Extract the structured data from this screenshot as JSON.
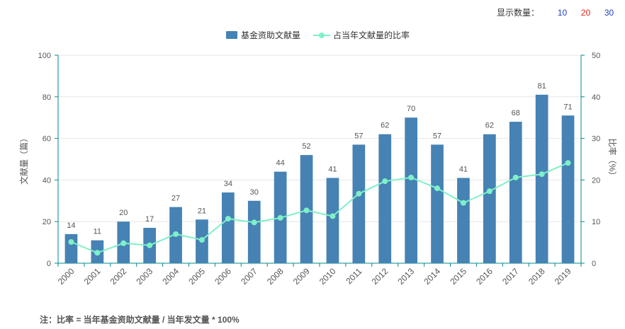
{
  "display_count": {
    "label": "显示数量：",
    "options": [
      {
        "value": "10",
        "color": "#1f3fbf"
      },
      {
        "value": "20",
        "color": "#e0281e"
      },
      {
        "value": "30",
        "color": "#1f3fbf"
      }
    ]
  },
  "footnote": "注：比率 = 当年基金资助文献量 / 当年发文量 * 100%",
  "colors": {
    "bar": "#4682b4",
    "line": "#7ff0c8",
    "axis": "#008b8b",
    "grid": "#e6e6e6"
  },
  "chart_data": {
    "type": "bar",
    "categories": [
      "2000",
      "2001",
      "2002",
      "2003",
      "2004",
      "2005",
      "2006",
      "2007",
      "2008",
      "2009",
      "2010",
      "2011",
      "2012",
      "2013",
      "2014",
      "2015",
      "2016",
      "2017",
      "2018",
      "2019"
    ],
    "series": [
      {
        "name": "基金资助文献量",
        "type": "bar",
        "axis": "left",
        "values": [
          14,
          11,
          20,
          17,
          27,
          21,
          34,
          30,
          44,
          52,
          41,
          57,
          62,
          70,
          57,
          41,
          62,
          68,
          81,
          71
        ]
      },
      {
        "name": "占当年文献量的比率",
        "type": "line",
        "axis": "right",
        "values": [
          5.1,
          2.5,
          4.8,
          4.3,
          7.0,
          5.6,
          10.7,
          9.8,
          10.9,
          12.7,
          11.3,
          16.7,
          19.7,
          20.6,
          18.0,
          14.5,
          17.3,
          20.6,
          21.4,
          24.1
        ]
      }
    ],
    "ylabel": "文献量（篇）",
    "ylabel_right": "比率（%）",
    "ylim": [
      0,
      100
    ],
    "ylim_right": [
      0,
      50
    ],
    "yticks": [
      "0",
      "20",
      "40",
      "60",
      "80",
      "100"
    ],
    "yticks_right": [
      "0",
      "10",
      "20",
      "30",
      "40",
      "50"
    ],
    "legend_position": "top-center",
    "grid": true
  }
}
